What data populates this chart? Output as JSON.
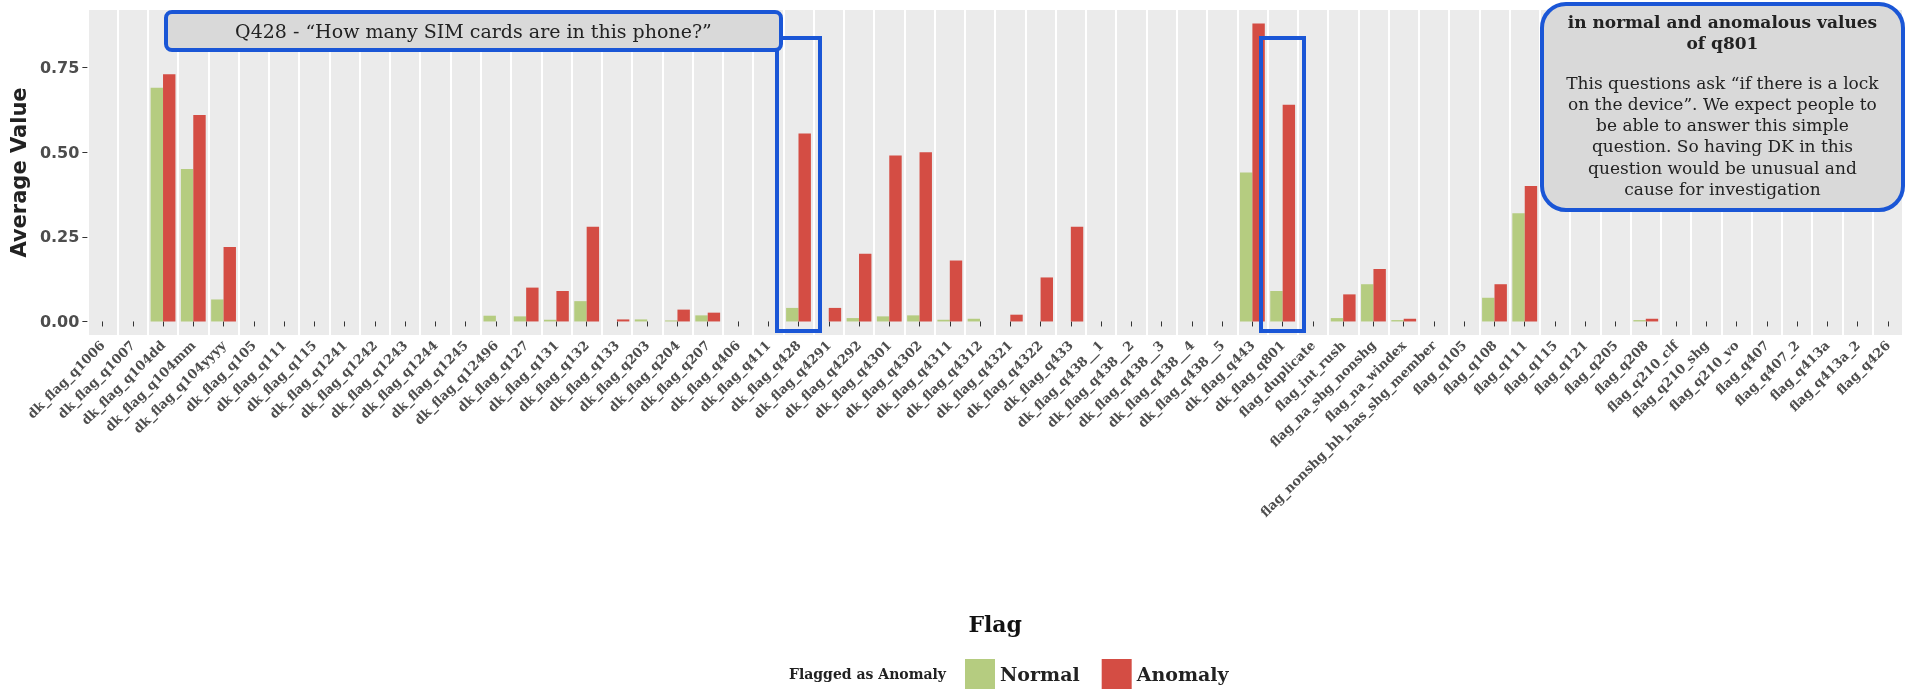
{
  "chart_data": {
    "type": "bar",
    "xlabel": "Flag",
    "ylabel": "Average Value",
    "legend_title": "Flagged as Anomaly",
    "categories": [
      "dk_flag_q1006",
      "dk_flag_q1007",
      "dk_flag_q104dd",
      "dk_flag_q104mm",
      "dk_flag_q104yyyy",
      "dk_flag_q105",
      "dk_flag_q111",
      "dk_flag_q115",
      "dk_flag_q1241",
      "dk_flag_q1242",
      "dk_flag_q1243",
      "dk_flag_q1244",
      "dk_flag_q1245",
      "dk_flag_q12496",
      "dk_flag_q127",
      "dk_flag_q131",
      "dk_flag_q132",
      "dk_flag_q133",
      "dk_flag_q203",
      "dk_flag_q204",
      "dk_flag_q207",
      "dk_flag_q406",
      "dk_flag_q411",
      "dk_flag_q428",
      "dk_flag_q4291",
      "dk_flag_q4292",
      "dk_flag_q4301",
      "dk_flag_q4302",
      "dk_flag_q4311",
      "dk_flag_q4312",
      "dk_flag_q4321",
      "dk_flag_q4322",
      "dk_flag_q433",
      "dk_flag_q438__1",
      "dk_flag_q438__2",
      "dk_flag_q438__3",
      "dk_flag_q438__4",
      "dk_flag_q438__5",
      "dk_flag_q443",
      "dk_flag_q801",
      "flag_duplicate",
      "flag_int_rush",
      "flag_na_shg_nonshg",
      "flag_na_windex",
      "flag_nonshg_hh_has_shg_member",
      "flag_q105",
      "flag_q108",
      "flag_q111",
      "flag_q115",
      "flag_q121",
      "flag_q205",
      "flag_q208",
      "flag_q210_clf",
      "flag_q210_shg",
      "flag_q210_vo",
      "flag_q407",
      "flag_q407_2",
      "flag_q413a",
      "flag_q413a_2",
      "flag_q426"
    ],
    "series": [
      {
        "name": "Normal",
        "color": "#b5cc80",
        "values": [
          0,
          0,
          0.69,
          0.45,
          0.065,
          0,
          0,
          0,
          0,
          0,
          0,
          0,
          0,
          0.017,
          0.015,
          0.005,
          0.06,
          0,
          0.006,
          0.003,
          0.018,
          0,
          0,
          0.04,
          0,
          0.01,
          0.015,
          0.018,
          0.005,
          0.008,
          0,
          0,
          0,
          0,
          0,
          0,
          0,
          0,
          0.44,
          0.09,
          0,
          0.01,
          0.11,
          0.004,
          0,
          0,
          0.07,
          0.32,
          0,
          0,
          0,
          0.004,
          0,
          0,
          0,
          0,
          0,
          0,
          0,
          0
        ]
      },
      {
        "name": "Anomaly",
        "color": "#d44d44",
        "values": [
          0,
          0,
          0.73,
          0.61,
          0.22,
          0,
          0,
          0,
          0,
          0,
          0,
          0,
          0,
          0,
          0.1,
          0.09,
          0.28,
          0.006,
          0,
          0.035,
          0.026,
          0,
          0,
          0.555,
          0.04,
          0.2,
          0.49,
          0.5,
          0.18,
          0,
          0.02,
          0.13,
          0.28,
          0,
          0,
          0,
          0,
          0,
          0.88,
          0.64,
          0,
          0.08,
          0.155,
          0.008,
          0,
          0,
          0.11,
          0.4,
          0,
          0,
          0,
          0.008,
          0,
          0,
          0,
          0,
          0,
          0,
          0,
          0
        ]
      }
    ],
    "ylim": [
      -0.04,
      0.92
    ],
    "yticks": [
      {
        "value": 0,
        "label": "0.00"
      },
      0.25,
      {
        "value": 0.5,
        "label": "0.50"
      },
      0.75
    ],
    "grid": true,
    "legend": "bottom",
    "annotations": [
      "Q428 - “How many SIM cards are in this phone?”",
      "in normal and anomalous values of q801",
      "This questions ask “if there is a lock on the device”. We expect people to be able to answer this simple question. So having DK in this question would be unusual and cause for investigation"
    ]
  }
}
